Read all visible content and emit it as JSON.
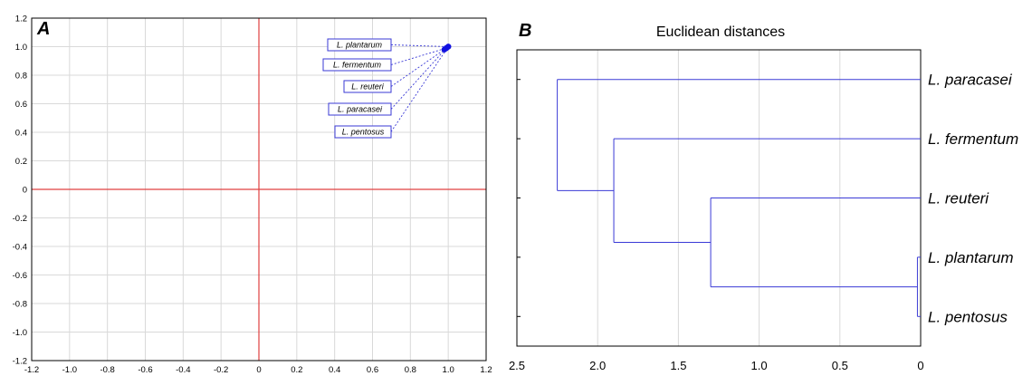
{
  "chart_data": [
    {
      "type": "scatter",
      "panel_label": "A",
      "title": "",
      "xlabel": "",
      "ylabel": "",
      "xlim": [
        -1.2,
        1.2
      ],
      "ylim": [
        -1.2,
        1.2
      ],
      "xticks": [
        "-1.2",
        "-1.0",
        "-0.8",
        "-0.6",
        "-0.4",
        "-0.2",
        "0",
        "0.2",
        "0.4",
        "0.6",
        "0.8",
        "1.0",
        "1.2"
      ],
      "yticks": [
        "1.2",
        "1.0",
        "0.8",
        "0.6",
        "0.4",
        "0.2",
        "0",
        "-0.2",
        "-0.4",
        "-0.6",
        "-0.8",
        "-1.0",
        "-1.2"
      ],
      "grid": true,
      "points": [
        {
          "label": "L. plantarum",
          "x": 1.0,
          "y": 1.0
        },
        {
          "label": "L. fermentum",
          "x": 0.99,
          "y": 0.99
        },
        {
          "label": "L. reuteri",
          "x": 0.98,
          "y": 0.98
        },
        {
          "label": "L. paracasei",
          "x": 0.99,
          "y": 0.99
        },
        {
          "label": "L. pentosus",
          "x": 1.0,
          "y": 1.0
        }
      ],
      "colors": {
        "points": "#1010e0",
        "zero_lines": "#e04040"
      }
    },
    {
      "type": "dendrogram",
      "panel_label": "B",
      "title": "Euclidean distances",
      "xlim": [
        2.5,
        0
      ],
      "xticks": [
        "2.5",
        "2.0",
        "1.5",
        "1.0",
        "0.5",
        "0"
      ],
      "grid": true,
      "leaves": [
        "L. paracasei",
        "L. fermentum",
        "L. reuteri",
        "L. plantarum",
        "L. pentosus"
      ],
      "merges": [
        {
          "a": "L. plantarum",
          "b": "L. pentosus",
          "height": 0.02
        },
        {
          "a": "L. reuteri",
          "b": "L. plantarum + L. pentosus",
          "height": 1.3
        },
        {
          "a": "L. fermentum",
          "b": "L. reuteri + L. plantarum + L. pentosus",
          "height": 1.9
        },
        {
          "a": "L. paracasei",
          "b": "L. fermentum + L. reuteri + L. plantarum + L. pentosus",
          "height": 2.25
        }
      ],
      "colors": {
        "links": "#3a3ad6"
      }
    }
  ]
}
